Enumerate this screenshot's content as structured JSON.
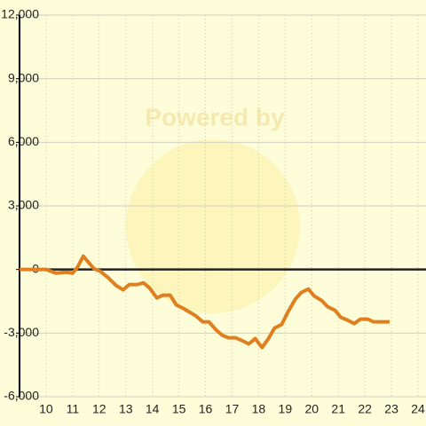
{
  "chart_data": {
    "type": "line",
    "watermark": "Powered by",
    "x": [
      9,
      10,
      10.37,
      10.77,
      11,
      11.17,
      11.4,
      11.6,
      11.8,
      12.03,
      12.33,
      12.63,
      12.9,
      13.13,
      13.43,
      13.67,
      13.9,
      14.17,
      14.4,
      14.67,
      14.9,
      15.17,
      15.4,
      15.63,
      15.9,
      16.13,
      16.4,
      16.63,
      16.87,
      17.13,
      17.37,
      17.63,
      17.87,
      18.13,
      18.37,
      18.6,
      18.87,
      19.1,
      19.37,
      19.6,
      19.87,
      20.1,
      20.37,
      20.6,
      20.87,
      21.1,
      21.33,
      21.6,
      21.83,
      22.1,
      22.33,
      22.6,
      22.93
    ],
    "series": [
      {
        "color": "#e07f1f",
        "values": [
          0,
          0,
          -170,
          -130,
          -170,
          80,
          630,
          330,
          40,
          -80,
          -380,
          -750,
          -960,
          -710,
          -710,
          -630,
          -880,
          -1340,
          -1210,
          -1210,
          -1670,
          -1840,
          -2010,
          -2180,
          -2470,
          -2470,
          -2850,
          -3100,
          -3220,
          -3220,
          -3350,
          -3510,
          -3260,
          -3680,
          -3260,
          -2760,
          -2590,
          -2010,
          -1420,
          -1090,
          -920,
          -1260,
          -1460,
          -1760,
          -1920,
          -2260,
          -2380,
          -2550,
          -2340,
          -2340,
          -2470,
          -2470,
          -2470
        ]
      }
    ],
    "xlim": [
      9,
      24.3
    ],
    "xticks": [
      10,
      11,
      12,
      13,
      14,
      15,
      16,
      17,
      18,
      19,
      20,
      21,
      22,
      23,
      24
    ],
    "ylim": [
      -6000,
      12000
    ],
    "yticks": [
      {
        "value": -6000,
        "label": "-6,000"
      },
      {
        "value": -3000,
        "label": "-3,000"
      },
      0,
      {
        "value": 3000,
        "label": "3,000"
      },
      {
        "value": 6000,
        "label": "6,000"
      },
      {
        "value": 9000,
        "label": "9,000"
      },
      {
        "value": 12000,
        "label": "12,000"
      }
    ],
    "grid": true
  }
}
